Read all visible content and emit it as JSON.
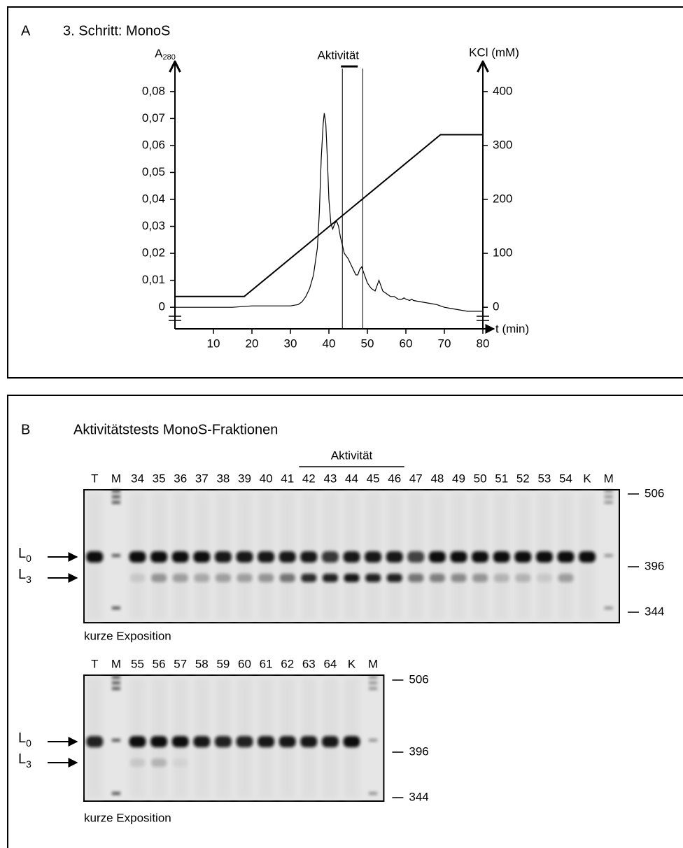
{
  "chart_data": {
    "type": "line",
    "letter": "A",
    "title": "3. Schritt: MonoS",
    "y_label": {
      "base": "A",
      "sub": "280"
    },
    "y2_label": "KCl (mM)",
    "x_label": "t (min)",
    "activity_label": "Aktivität",
    "activity_range": [
      43.5,
      48.8
    ],
    "xlim": [
      0,
      80
    ],
    "xticks": [
      10,
      20,
      30,
      40,
      50,
      60,
      70,
      80
    ],
    "ylim": [
      -0.008,
      0.088
    ],
    "yticks": [
      0,
      {
        "value": 0.01,
        "label": "0,01"
      },
      {
        "value": 0.02,
        "label": "0,02"
      },
      {
        "value": 0.03,
        "label": "0,03"
      },
      {
        "value": 0.04,
        "label": "0,04"
      },
      {
        "value": 0.05,
        "label": "0,05"
      },
      {
        "value": 0.06,
        "label": "0,06"
      },
      {
        "value": 0.07,
        "label": "0,07"
      },
      {
        "value": 0.08,
        "label": "0,08"
      }
    ],
    "y2lim": [
      -40,
      440
    ],
    "y2ticks": [
      0,
      100,
      200,
      300,
      400
    ],
    "series": [
      {
        "color": "#000000",
        "x": [
          0,
          5,
          10,
          15,
          20,
          25,
          30,
          32,
          33,
          34,
          35,
          36,
          37,
          37.5,
          38,
          38.5,
          38.8,
          39.2,
          39.6,
          40,
          40.5,
          41,
          41.5,
          42,
          42.5,
          43,
          43.5,
          44,
          45,
          46,
          47,
          47.5,
          48,
          48.5,
          49,
          50,
          51,
          52,
          52.5,
          53,
          53.5,
          54,
          55,
          56,
          57,
          58,
          59,
          59.5,
          60,
          61,
          61.5,
          62,
          64,
          66,
          68,
          70,
          72,
          74,
          76,
          78,
          80
        ],
        "values": [
          0,
          0,
          0,
          0,
          0.0005,
          0.0005,
          0.0005,
          0.001,
          0.002,
          0.004,
          0.007,
          0.012,
          0.022,
          0.035,
          0.055,
          0.068,
          0.072,
          0.068,
          0.055,
          0.04,
          0.031,
          0.029,
          0.031,
          0.032,
          0.03,
          0.026,
          0.023,
          0.02,
          0.018,
          0.015,
          0.012,
          0.012,
          0.014,
          0.015,
          0.013,
          0.009,
          0.007,
          0.006,
          0.008,
          0.01,
          0.008,
          0.006,
          0.005,
          0.004,
          0.004,
          0.003,
          0.003,
          0.0035,
          0.003,
          0.0025,
          0.003,
          0.0025,
          0.002,
          0.0015,
          0.001,
          0,
          -0.0005,
          -0.001,
          -0.0015,
          -0.0015,
          -0.0015
        ]
      },
      {
        "color": "#000000",
        "axis": "y2",
        "x": [
          0,
          18,
          69,
          80
        ],
        "values": [
          20,
          20,
          320,
          320
        ]
      }
    ]
  },
  "panel_b": {
    "letter": "B",
    "title": "Aktivitätstests MonoS-Fraktionen",
    "activity_label": "Aktivität",
    "gels": [
      {
        "lanes": [
          "T",
          "M",
          "34",
          "35",
          "36",
          "37",
          "38",
          "39",
          "40",
          "41",
          "42",
          "43",
          "44",
          "45",
          "46",
          "47",
          "48",
          "49",
          "50",
          "51",
          "52",
          "53",
          "54",
          "K",
          "M"
        ],
        "markers": [
          "506",
          "396",
          "344"
        ],
        "band_labels": [
          {
            "base": "L",
            "sub": "0"
          },
          {
            "base": "L",
            "sub": "3"
          }
        ],
        "caption": "kurze Exposition"
      },
      {
        "lanes": [
          "T",
          "M",
          "55",
          "56",
          "57",
          "58",
          "59",
          "60",
          "61",
          "62",
          "63",
          "64",
          "K",
          "M"
        ],
        "markers": [
          "506",
          "396",
          "344"
        ],
        "band_labels": [
          {
            "base": "L",
            "sub": "0"
          },
          {
            "base": "L",
            "sub": "3"
          }
        ],
        "caption": "kurze Exposition"
      }
    ]
  }
}
